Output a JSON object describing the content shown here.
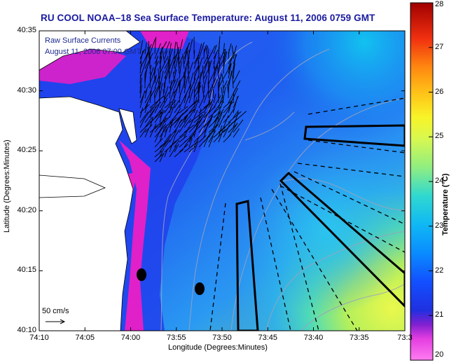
{
  "title": "RU COOL  NOAA–18  Sea Surface Temperature:  August 11, 2006 0759 GMT",
  "inset": {
    "line1": "Raw Surface Currents",
    "line2": "August 11, 2006 07:00 GMT"
  },
  "scale": {
    "label": "50 cm/s"
  },
  "axes": {
    "xlabel": "Longitude (Degrees:Minutes)",
    "ylabel": "Latitude (Degrees:Minutes)",
    "xticks": [
      "74:10",
      "74:05",
      "74:00",
      "73:55",
      "73:50",
      "73:45",
      "73:40",
      "73:35",
      "73:3"
    ],
    "yticks": [
      "40:35",
      "40:30",
      "40:25",
      "40:20",
      "40:15",
      "40:10"
    ]
  },
  "colorbar": {
    "label": "Temperature (°C)",
    "ticks": [
      "28",
      "27",
      "26",
      "25",
      "24",
      "23",
      "22",
      "21",
      "20"
    ],
    "min": 20,
    "max": 28
  },
  "colors": {
    "title": "#1a1aa0",
    "land": "#ffffff",
    "coast_warm": "#e020c8",
    "water_cool": "#1a46e6",
    "water_mid": "#2aa0f0",
    "water_warm": "#40d8c8",
    "water_yellow": "#e0f060",
    "markers": "#000000"
  }
}
